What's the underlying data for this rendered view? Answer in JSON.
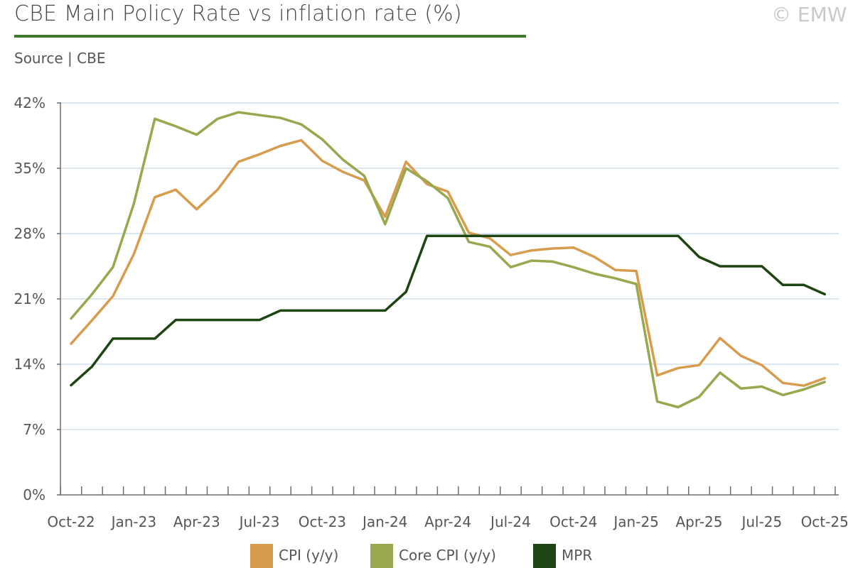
{
  "header": {
    "title": "CBE Main Policy Rate vs inflation rate (%)",
    "copyright": "© EMW",
    "source": "Source | CBE"
  },
  "colors": {
    "cpi": "#d89c4e",
    "core_cpi": "#97a84e",
    "mpr": "#1e4511",
    "title_rule": "#3f7a2e",
    "grid": "#dce6ee",
    "axis": "#6e6e6e"
  },
  "chart_data": {
    "type": "line",
    "title": "CBE Main Policy Rate vs inflation rate (%)",
    "xlabel": "",
    "ylabel": "",
    "ylim": [
      0,
      42
    ],
    "yticks": [
      0,
      7,
      14,
      21,
      28,
      35,
      42
    ],
    "ytick_labels": [
      "0%",
      "7%",
      "14%",
      "21%",
      "28%",
      "35%",
      "42%"
    ],
    "grid": true,
    "legend": "bottom-center",
    "x_tick_labels": [
      "Oct-22",
      "Jan-23",
      "Apr-23",
      "Jul-23",
      "Oct-23",
      "Jan-24",
      "Apr-24",
      "Jul-24",
      "Oct-24",
      "Jan-25",
      "Apr-25",
      "Jul-25",
      "Oct-25"
    ],
    "x_tick_label_every": 3,
    "categories": [
      "Oct-22",
      "Nov-22",
      "Dec-22",
      "Jan-23",
      "Feb-23",
      "Mar-23",
      "Apr-23",
      "May-23",
      "Jun-23",
      "Jul-23",
      "Aug-23",
      "Sep-23",
      "Oct-23",
      "Nov-23",
      "Dec-23",
      "Jan-24",
      "Feb-24",
      "Mar-24",
      "Apr-24",
      "May-24",
      "Jun-24",
      "Jul-24",
      "Aug-24",
      "Sep-24",
      "Oct-24",
      "Nov-24",
      "Dec-24",
      "Jan-25",
      "Feb-25",
      "Mar-25",
      "Apr-25",
      "May-25",
      "Jun-25",
      "Jul-25",
      "Aug-25",
      "Sep-25",
      "Oct-25"
    ],
    "series": [
      {
        "name": "CPI (y/y)",
        "color_key": "cpi",
        "values": [
          16.2,
          18.7,
          21.3,
          25.8,
          31.9,
          32.7,
          30.6,
          32.7,
          35.7,
          36.5,
          37.4,
          38.0,
          35.8,
          34.6,
          33.7,
          29.8,
          35.7,
          33.3,
          32.5,
          28.1,
          27.5,
          25.7,
          26.2,
          26.4,
          26.5,
          25.5,
          24.1,
          24.0,
          12.8,
          13.6,
          13.9,
          16.8,
          14.9,
          13.9,
          12.0,
          11.7,
          12.5
        ]
      },
      {
        "name": "Core CPI (y/y)",
        "color_key": "core_cpi",
        "values": [
          18.9,
          21.5,
          24.4,
          31.2,
          40.3,
          39.5,
          38.6,
          40.3,
          41.0,
          40.7,
          40.4,
          39.7,
          38.1,
          35.9,
          34.2,
          29.0,
          35.0,
          33.6,
          31.8,
          27.1,
          26.6,
          24.4,
          25.1,
          25.0,
          24.4,
          23.7,
          23.2,
          22.6,
          10.0,
          9.4,
          10.5,
          13.1,
          11.4,
          11.6,
          10.7,
          11.3,
          12.1
        ]
      },
      {
        "name": "MPR",
        "color_key": "mpr",
        "values": [
          11.75,
          13.75,
          16.75,
          16.75,
          16.75,
          18.75,
          18.75,
          18.75,
          18.75,
          18.75,
          19.75,
          19.75,
          19.75,
          19.75,
          19.75,
          19.75,
          21.75,
          27.75,
          27.75,
          27.75,
          27.75,
          27.75,
          27.75,
          27.75,
          27.75,
          27.75,
          27.75,
          27.75,
          27.75,
          27.75,
          25.5,
          24.5,
          24.5,
          24.5,
          22.5,
          22.5,
          21.5
        ]
      }
    ]
  }
}
